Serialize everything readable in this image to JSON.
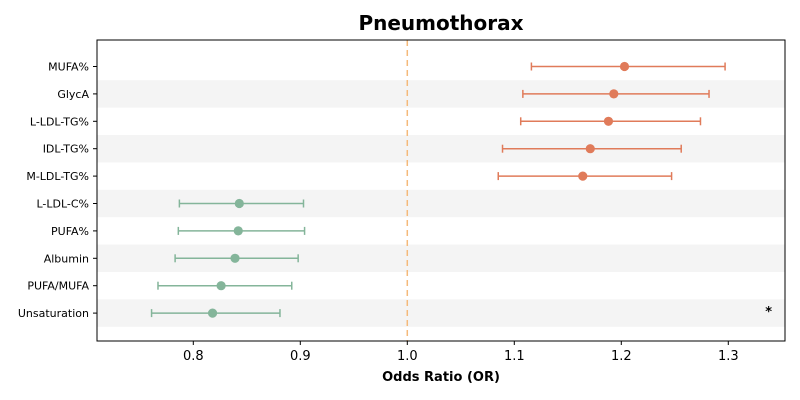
{
  "chart_data": {
    "type": "forest",
    "title": "Pneumothorax",
    "xlabel": "Odds Ratio (OR)",
    "ylabel": "",
    "xlim": [
      0.71,
      1.353
    ],
    "xticks": [
      0.8,
      0.9,
      1.0,
      1.1,
      1.2,
      1.3
    ],
    "xtick_labels": [
      "0.8",
      "0.9",
      "1.0",
      "1.1",
      "1.2",
      "1.3"
    ],
    "reference_line": 1.0,
    "grid": false,
    "row_shading": "alternating",
    "colors": {
      "positive": "#e07b5a",
      "negative": "#84b59a",
      "reference_line": "#f5b97a",
      "shade": "#f4f4f4"
    },
    "categories": [
      "MUFA%",
      "GlycA",
      "L-LDL-TG%",
      "IDL-TG%",
      "M-LDL-TG%",
      "L-LDL-C%",
      "PUFA%",
      "Albumin",
      "PUFA/MUFA",
      "Unsaturation"
    ],
    "or": [
      1.203,
      1.193,
      1.188,
      1.171,
      1.164,
      0.843,
      0.842,
      0.839,
      0.826,
      0.818
    ],
    "ci_lower": [
      1.116,
      1.108,
      1.106,
      1.089,
      1.085,
      0.787,
      0.786,
      0.783,
      0.767,
      0.761
    ],
    "ci_upper": [
      1.297,
      1.282,
      1.274,
      1.256,
      1.247,
      0.903,
      0.904,
      0.898,
      0.892,
      0.881
    ],
    "annotations": [
      {
        "text": "*",
        "category": "Unsaturation",
        "x": 1.32
      }
    ]
  }
}
